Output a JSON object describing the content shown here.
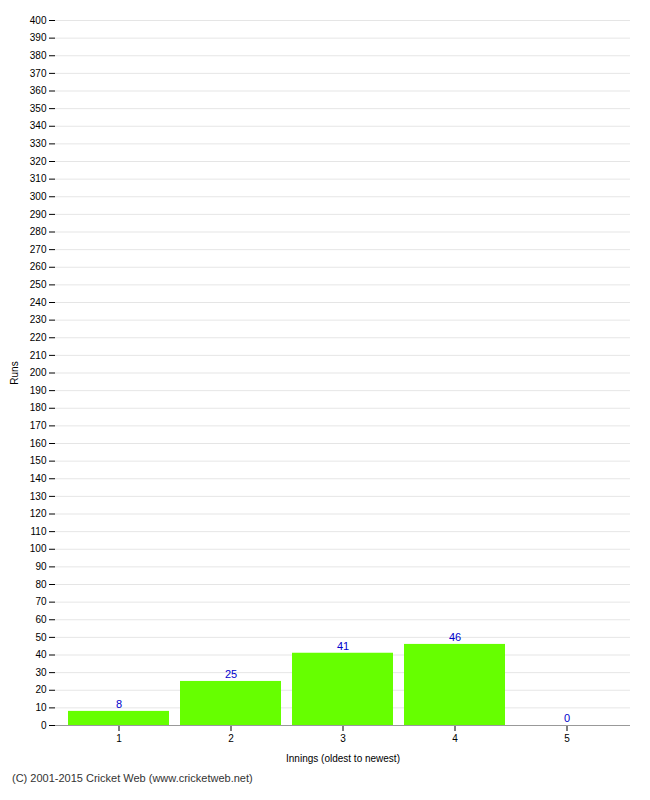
{
  "chart_data": {
    "type": "bar",
    "categories": [
      "1",
      "2",
      "3",
      "4",
      "5"
    ],
    "values": [
      8,
      25,
      41,
      46,
      0
    ],
    "color": "#66ff00",
    "xlabel": "Innings (oldest to newest)",
    "ylabel": "Runs",
    "ylim": [
      0,
      400
    ],
    "yticks": [
      0,
      10,
      20,
      30,
      40,
      50,
      60,
      70,
      80,
      90,
      100,
      110,
      120,
      130,
      140,
      150,
      160,
      170,
      180,
      190,
      200,
      210,
      220,
      230,
      240,
      250,
      260,
      270,
      280,
      290,
      300,
      310,
      320,
      330,
      340,
      350,
      360,
      370,
      380,
      390,
      400
    ],
    "grid": true,
    "data_labels": true,
    "caption": "(C) 2001-2015 Cricket Web (www.cricketweb.net)"
  }
}
